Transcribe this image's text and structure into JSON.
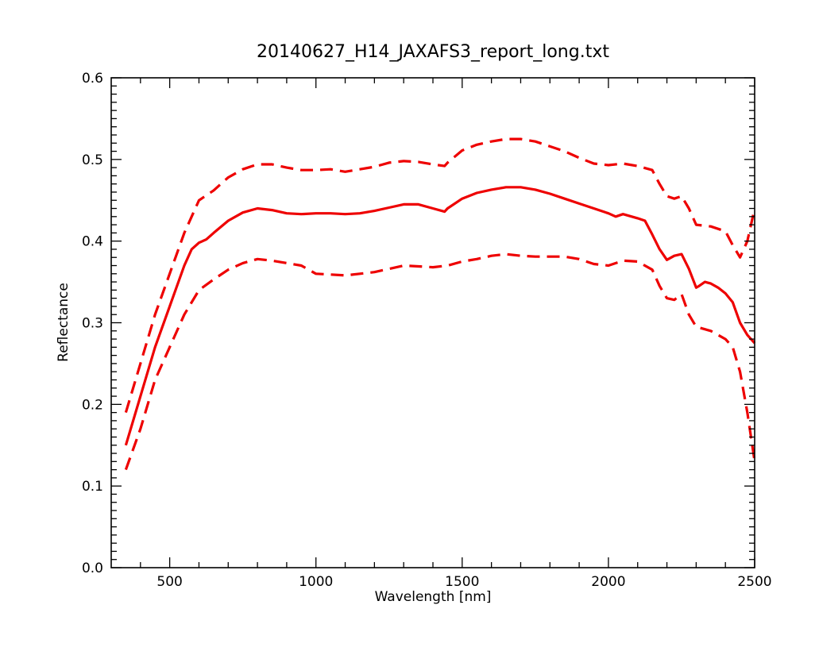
{
  "chart_data": {
    "type": "line",
    "title": "20140627_H14_JAXAFS3_report_long.txt",
    "xlabel": "Wavelength [nm]",
    "ylabel": "Reflectance",
    "xlim": [
      300,
      2500
    ],
    "ylim": [
      0.0,
      0.6
    ],
    "x_ticks": [
      500,
      1000,
      1500,
      2000,
      2500
    ],
    "x_tick_labels": [
      "500",
      "1000",
      "1500",
      "2000",
      "2500"
    ],
    "y_ticks": [
      0.0,
      0.1,
      0.2,
      0.3,
      0.4,
      0.5,
      0.6
    ],
    "y_tick_labels": [
      "0.0",
      "0.1",
      "0.2",
      "0.3",
      "0.4",
      "0.5",
      "0.6"
    ],
    "grid": false,
    "legend": "none",
    "colors": {
      "series": "#ee0000",
      "axes": "#000000",
      "background": "#ffffff"
    },
    "series": [
      {
        "style": "dashed",
        "x": [
          350,
          400,
          450,
          500,
          550,
          600,
          650,
          700,
          750,
          800,
          850,
          900,
          950,
          1000,
          1050,
          1100,
          1150,
          1200,
          1250,
          1300,
          1350,
          1400,
          1440,
          1450,
          1500,
          1550,
          1600,
          1650,
          1700,
          1750,
          1800,
          1850,
          1900,
          1950,
          2000,
          2050,
          2100,
          2150,
          2175,
          2200,
          2225,
          2250,
          2275,
          2300,
          2350,
          2400,
          2425,
          2450,
          2475,
          2500
        ],
        "values": [
          0.19,
          0.25,
          0.31,
          0.36,
          0.41,
          0.45,
          0.462,
          0.478,
          0.488,
          0.494,
          0.494,
          0.49,
          0.487,
          0.487,
          0.488,
          0.485,
          0.488,
          0.491,
          0.496,
          0.498,
          0.497,
          0.494,
          0.492,
          0.496,
          0.511,
          0.518,
          0.522,
          0.525,
          0.525,
          0.522,
          0.516,
          0.51,
          0.502,
          0.495,
          0.493,
          0.495,
          0.492,
          0.487,
          0.47,
          0.455,
          0.452,
          0.455,
          0.44,
          0.42,
          0.418,
          0.412,
          0.395,
          0.38,
          0.4,
          0.44
        ]
      },
      {
        "style": "solid",
        "x": [
          350,
          400,
          450,
          500,
          550,
          575,
          600,
          625,
          650,
          700,
          750,
          800,
          850,
          900,
          950,
          1000,
          1050,
          1100,
          1150,
          1200,
          1250,
          1300,
          1350,
          1400,
          1440,
          1450,
          1500,
          1550,
          1600,
          1650,
          1700,
          1750,
          1800,
          1850,
          1900,
          1950,
          2000,
          2025,
          2050,
          2100,
          2125,
          2150,
          2175,
          2200,
          2225,
          2250,
          2275,
          2300,
          2310,
          2330,
          2350,
          2375,
          2400,
          2425,
          2450,
          2475,
          2500
        ],
        "values": [
          0.15,
          0.21,
          0.27,
          0.32,
          0.37,
          0.39,
          0.398,
          0.402,
          0.41,
          0.425,
          0.435,
          0.44,
          0.438,
          0.434,
          0.433,
          0.434,
          0.434,
          0.433,
          0.434,
          0.437,
          0.441,
          0.445,
          0.445,
          0.44,
          0.436,
          0.44,
          0.452,
          0.459,
          0.463,
          0.466,
          0.466,
          0.463,
          0.458,
          0.452,
          0.446,
          0.44,
          0.434,
          0.43,
          0.433,
          0.428,
          0.425,
          0.408,
          0.39,
          0.377,
          0.382,
          0.384,
          0.366,
          0.343,
          0.345,
          0.35,
          0.348,
          0.343,
          0.336,
          0.325,
          0.3,
          0.285,
          0.275
        ]
      },
      {
        "style": "dashed",
        "x": [
          350,
          400,
          450,
          500,
          550,
          600,
          650,
          700,
          750,
          800,
          850,
          900,
          950,
          1000,
          1050,
          1100,
          1150,
          1200,
          1250,
          1300,
          1350,
          1400,
          1450,
          1500,
          1550,
          1600,
          1650,
          1700,
          1750,
          1800,
          1850,
          1900,
          1950,
          2000,
          2050,
          2100,
          2150,
          2175,
          2200,
          2225,
          2250,
          2275,
          2300,
          2350,
          2400,
          2425,
          2450,
          2475,
          2500
        ],
        "values": [
          0.12,
          0.17,
          0.23,
          0.27,
          0.31,
          0.34,
          0.353,
          0.365,
          0.373,
          0.378,
          0.376,
          0.373,
          0.37,
          0.36,
          0.359,
          0.358,
          0.36,
          0.362,
          0.366,
          0.37,
          0.369,
          0.368,
          0.37,
          0.375,
          0.378,
          0.382,
          0.384,
          0.382,
          0.381,
          0.381,
          0.381,
          0.378,
          0.372,
          0.37,
          0.376,
          0.375,
          0.365,
          0.345,
          0.33,
          0.328,
          0.335,
          0.31,
          0.295,
          0.29,
          0.28,
          0.27,
          0.24,
          0.19,
          0.13
        ]
      }
    ]
  }
}
